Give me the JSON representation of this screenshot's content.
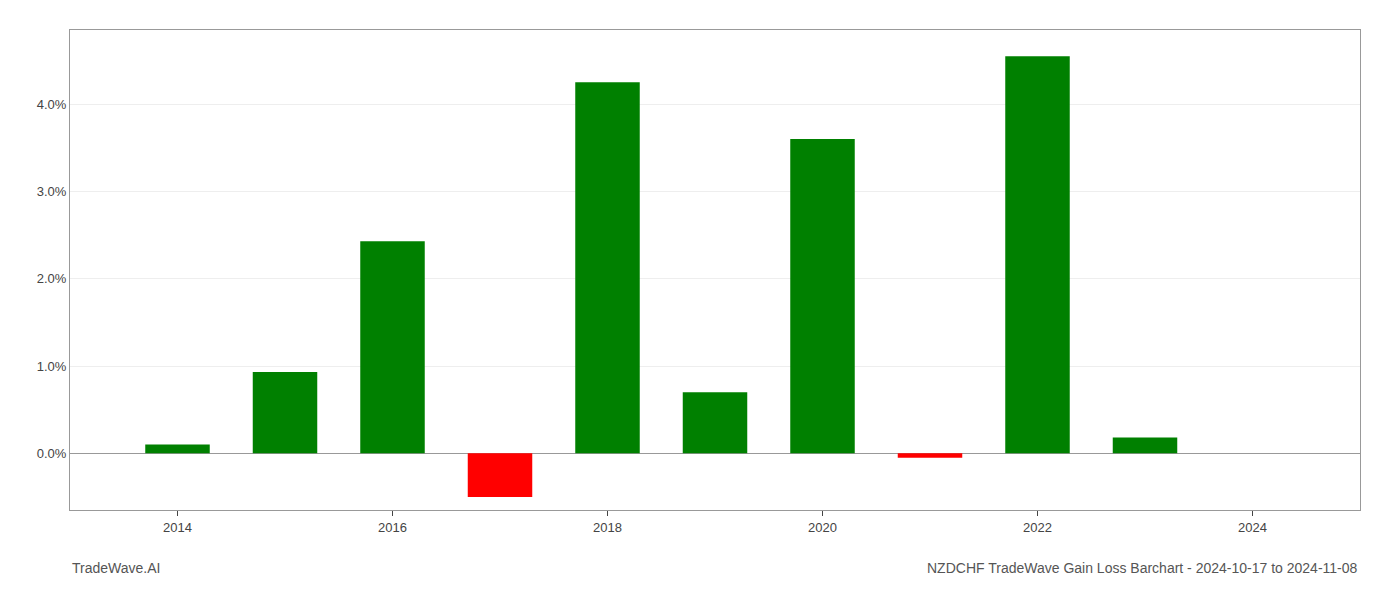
{
  "chart_data": {
    "type": "bar",
    "title": "NZDCHF TradeWave Gain Loss Barchart - 2024-10-17 to 2024-11-08",
    "annotations": [
      "TradeWave.AI"
    ],
    "x": [
      2014,
      2015,
      2016,
      2017,
      2018,
      2019,
      2020,
      2021,
      2022,
      2023
    ],
    "values": [
      0.1,
      0.93,
      2.43,
      -0.5,
      4.25,
      0.7,
      3.6,
      -0.05,
      4.55,
      0.18
    ],
    "colors": [
      "#008000",
      "#008000",
      "#008000",
      "#ff0000",
      "#008000",
      "#008000",
      "#008000",
      "#ff0000",
      "#008000",
      "#008000"
    ],
    "xlim": [
      2013.0,
      2025.0
    ],
    "xticks": [
      2014,
      2016,
      2018,
      2020,
      2022,
      2024
    ],
    "ylim": [
      -0.65,
      4.85
    ],
    "yticks": [
      {
        "value": 0.0,
        "label": "0.0%"
      },
      {
        "value": 1.0,
        "label": "1.0%"
      },
      {
        "value": 2.0,
        "label": "2.0%"
      },
      {
        "value": 3.0,
        "label": "3.0%"
      },
      {
        "value": 4.0,
        "label": "4.0%"
      }
    ],
    "grid": true
  }
}
